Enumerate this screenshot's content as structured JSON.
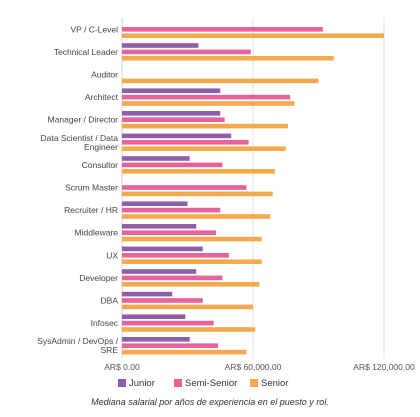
{
  "chart_data": {
    "type": "bar",
    "orientation": "horizontal",
    "categories": [
      "VP / C-Level",
      "Technical Leader",
      "Auditor",
      "Architect",
      "Manager / Director",
      "Data Scientist / Data Engineer",
      "Consultor",
      "Scrum Master",
      "Recruiter / HR",
      "Middleware",
      "UX",
      "Developer",
      "DBA",
      "Infosec",
      "SysAdmin / DevOps / SRE"
    ],
    "series": [
      {
        "name": "Junior",
        "color": "#8c5fa8",
        "values": [
          null,
          35000,
          null,
          45000,
          45000,
          50000,
          31000,
          null,
          30000,
          34000,
          37000,
          34000,
          23000,
          29000,
          31000
        ]
      },
      {
        "name": "Semi-Senior",
        "color": "#e8619a",
        "values": [
          92000,
          59000,
          null,
          77000,
          47000,
          58000,
          46000,
          57000,
          45000,
          43000,
          49000,
          46000,
          37000,
          42000,
          44000
        ]
      },
      {
        "name": "Senior",
        "color": "#f5a94c",
        "values": [
          120000,
          97000,
          90000,
          79000,
          76000,
          75000,
          70000,
          69000,
          68000,
          64000,
          64000,
          63000,
          60000,
          61000,
          57000
        ]
      }
    ],
    "xlim": [
      0,
      120000
    ],
    "xticks": [
      0,
      60000,
      120000
    ],
    "xtick_labels": [
      "AR$ 0.00",
      "AR$ 60,000.00",
      "AR$ 120,000.00"
    ],
    "grid": "vertical",
    "legend": "bottom"
  },
  "caption": "Mediana salarial por años de experiencia en el puesto y rol."
}
